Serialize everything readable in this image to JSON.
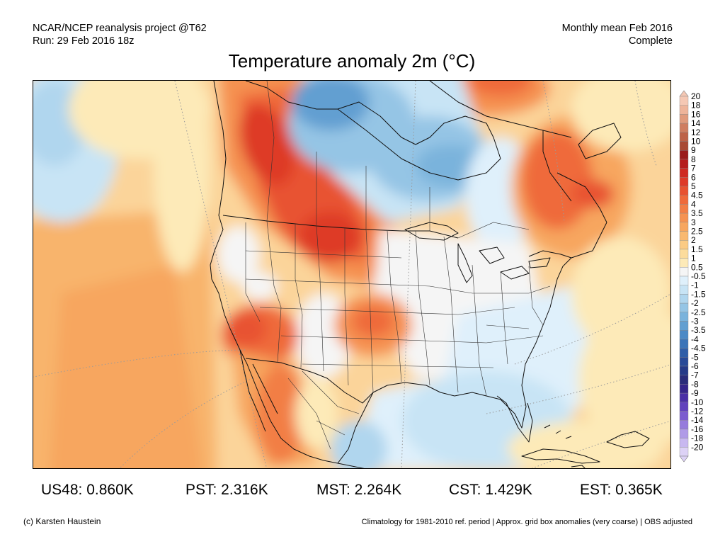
{
  "header": {
    "left_line1": "NCAR/NCEP reanalysis project @T62",
    "left_line2": "Run: 29 Feb 2016 18z",
    "right_line1": "Monthly mean Feb 2016",
    "right_line2": "Complete"
  },
  "title": "Temperature anomaly 2m (°C)",
  "legend": {
    "levels": [
      {
        "label": "20",
        "color": "#f5c8b4"
      },
      {
        "label": "18",
        "color": "#eeb49a"
      },
      {
        "label": "16",
        "color": "#e09a7c"
      },
      {
        "label": "14",
        "color": "#cf7d60"
      },
      {
        "label": "12",
        "color": "#bd6248"
      },
      {
        "label": "10",
        "color": "#a84a34"
      },
      {
        "label": "9",
        "color": "#9a1c1c"
      },
      {
        "label": "8",
        "color": "#b51d1d"
      },
      {
        "label": "7",
        "color": "#cf2a22"
      },
      {
        "label": "6",
        "color": "#de3a28"
      },
      {
        "label": "5",
        "color": "#e85230"
      },
      {
        "label": "4.5",
        "color": "#ef6a3a"
      },
      {
        "label": "4",
        "color": "#f27e45"
      },
      {
        "label": "3.5",
        "color": "#f59251"
      },
      {
        "label": "3",
        "color": "#f7a65f"
      },
      {
        "label": "2.5",
        "color": "#f9b970"
      },
      {
        "label": "2",
        "color": "#fbcb84"
      },
      {
        "label": "1.5",
        "color": "#fcdc9c"
      },
      {
        "label": "1",
        "color": "#fdeab8"
      },
      {
        "label": "0.5",
        "color": "#f5f5f5"
      },
      {
        "label": "-0.5",
        "color": "#dff0fb"
      },
      {
        "label": "-1",
        "color": "#c8e4f5"
      },
      {
        "label": "-1.5",
        "color": "#b0d6ee"
      },
      {
        "label": "-2",
        "color": "#95c5e5"
      },
      {
        "label": "-2.5",
        "color": "#7ab3dc"
      },
      {
        "label": "-3",
        "color": "#629fd1"
      },
      {
        "label": "-3.5",
        "color": "#4c8ac6"
      },
      {
        "label": "-4",
        "color": "#3b74b8"
      },
      {
        "label": "-4.5",
        "color": "#2f5ea8"
      },
      {
        "label": "-5",
        "color": "#284a98"
      },
      {
        "label": "-6",
        "color": "#253a88"
      },
      {
        "label": "-7",
        "color": "#2a2c7a"
      },
      {
        "label": "-8",
        "color": "#35258a"
      },
      {
        "label": "-9",
        "color": "#4a2fa6"
      },
      {
        "label": "-10",
        "color": "#6142bd"
      },
      {
        "label": "-12",
        "color": "#7b5ccf"
      },
      {
        "label": "-14",
        "color": "#967bdc"
      },
      {
        "label": "-16",
        "color": "#b09be7"
      },
      {
        "label": "-18",
        "color": "#c8b8f0"
      },
      {
        "label": "-20",
        "color": "#ddd2f6"
      }
    ]
  },
  "stats": {
    "us48": "US48: 0.860K",
    "pst": "PST: 2.316K",
    "mst": "MST: 2.264K",
    "cst": "CST: 1.429K",
    "est": "EST: 0.365K"
  },
  "footer": {
    "left": "(c) Karsten Haustein",
    "right": "Climatology for 1981-2010 ref. period | Approx. grid box anomalies (very coarse) | OBS adjusted"
  }
}
